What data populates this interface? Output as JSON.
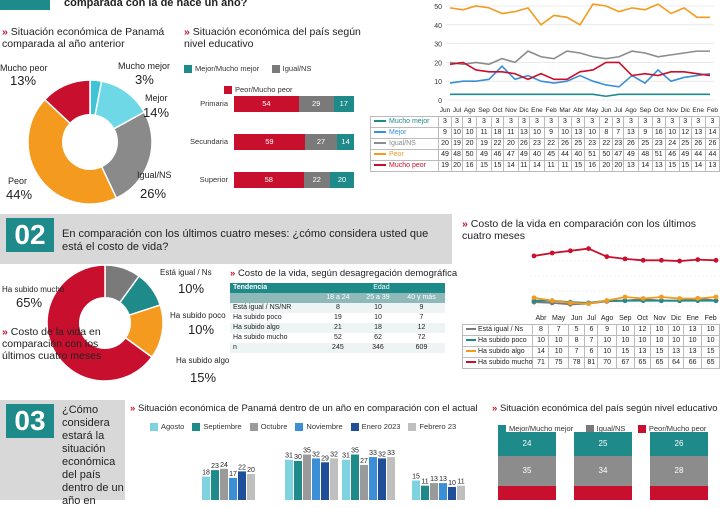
{
  "colors": {
    "teal": "#1f8a8a",
    "blue": "#3b8fd6",
    "green_gray": "#8c8c8c",
    "orange": "#f39a1f",
    "red": "#c8102e",
    "cyan": "#5fd0e0",
    "dark_gray": "#7a7a7a",
    "light_gray": "#bfbfbf"
  },
  "header": {
    "top_question": "comparada con la de hace un año?"
  },
  "sec1": {
    "pie_title": "Situación económica de Panamá comparada al año anterior",
    "pie_labels": {
      "mucho_peor": "Mucho peor",
      "mucho_peor_pct": "13%",
      "mucho_mejor": "Mucho mejor",
      "mucho_mejor_pct": "3%",
      "mejor": "Mejor",
      "mejor_pct": "14%",
      "igual": "Igual/NS",
      "igual_pct": "26%",
      "peor": "Peor",
      "peor_pct": "44%"
    },
    "bar_title": "Situación económica del país según nivel educativo",
    "bar_legend": [
      "Mejor/Mucho mejor",
      "Igual/NS",
      "Peor/Mucho peor"
    ],
    "bar_rows": [
      {
        "label": "Primaria",
        "peor": "54",
        "igual": "29",
        "mejor": "17"
      },
      {
        "label": "Secundaria",
        "peor": "59",
        "igual": "27",
        "mejor": "14"
      },
      {
        "label": "Superior",
        "peor": "58",
        "igual": "22",
        "mejor": "20"
      }
    ]
  },
  "sec2": {
    "badge": "02",
    "question": "En comparación con los últimos cuatro meses: ¿cómo considera usted que está el costo de vida?",
    "pie_labels": {
      "igual": "Está igual / Ns",
      "igual_pct": "10%",
      "mucho": "Ha subido mucho",
      "mucho_pct": "65%",
      "poco": "Ha subido poco",
      "poco_pct": "10%",
      "algo": "Ha subido algo",
      "algo_pct": "15%"
    },
    "pie_caption": "Costo de la vida en comparación con los últimos cuatro meses",
    "demo_title": "Costo de la vida, según desagregación demográfica",
    "demo_head1": [
      "Tendencia",
      "Edad"
    ],
    "demo_head2": [
      "",
      "18 a 24",
      "25 a 39",
      "40 y más"
    ],
    "demo_rows": [
      [
        "Está igual / NS/NR",
        "8",
        "10",
        "9"
      ],
      [
        "Ha subido poco",
        "19",
        "10",
        "7"
      ],
      [
        "Ha subido algo",
        "21",
        "18",
        "12"
      ],
      [
        "Ha subido mucho",
        "52",
        "62",
        "72"
      ],
      [
        "n",
        "245",
        "346",
        "609"
      ]
    ],
    "trend_title": "Costo de la vida en comparación con los últimos cuatro meses",
    "trend_months": [
      "Abr",
      "May",
      "Jun",
      "Jul",
      "Ago",
      "Sep",
      "Oct",
      "Nov",
      "Dic",
      "Ene",
      "Feb"
    ],
    "trend_rows": [
      {
        "label": "Está igual / Ns",
        "values": [
          "8",
          "7",
          "5",
          "6",
          "9",
          "10",
          "12",
          "10",
          "10",
          "13",
          "10"
        ]
      },
      {
        "label": "Ha subido poco",
        "values": [
          "10",
          "10",
          "8",
          "7",
          "10",
          "10",
          "10",
          "10",
          "10",
          "10",
          "10"
        ]
      },
      {
        "label": "Ha subido algo",
        "values": [
          "14",
          "10",
          "7",
          "6",
          "10",
          "15",
          "13",
          "15",
          "13",
          "13",
          "15"
        ]
      },
      {
        "label": "Ha subido mucho",
        "values": [
          "71",
          "75",
          "78",
          "81",
          "70",
          "67",
          "65",
          "65",
          "64",
          "66",
          "65"
        ]
      }
    ]
  },
  "sec3": {
    "badge": "03",
    "question": "¿Cómo considera estará la situación económica del país dentro de un año en",
    "bar_title": "Situación económica de Panamá dentro de un año en comparación con el actual",
    "legend": [
      "Agosto",
      "Septiembre",
      "Octubre",
      "Noviembre",
      "Enero 2023",
      "Febrero 23"
    ],
    "groups": [
      {
        "values": [
          "18",
          "23",
          "24",
          "17",
          "22",
          "20"
        ]
      },
      {
        "values": [
          "31",
          "30",
          "35",
          "32",
          "29",
          "32"
        ]
      },
      {
        "values": [
          "31",
          "35",
          "27",
          "33",
          "32",
          "33"
        ]
      },
      {
        "values": [
          "15",
          "11",
          "13",
          "13",
          "10",
          "11"
        ]
      }
    ],
    "edu_title": "Situación económica del país según nivel educativo",
    "edu_legend": [
      "Mejor/Mucho mejor",
      "Igual/NS",
      "Peor/Mucho peor"
    ],
    "edu_cols": [
      {
        "top": "24",
        "mid": "35"
      },
      {
        "top": "25",
        "mid": "34"
      },
      {
        "top": "26",
        "mid": "28"
      }
    ]
  },
  "chart_data": [
    {
      "type": "pie",
      "title": "Situación económica de Panamá comparada al año anterior",
      "categories": [
        "Mucho mejor",
        "Mejor",
        "Igual/NS",
        "Peor",
        "Mucho peor"
      ],
      "values": [
        3,
        14,
        26,
        44,
        13
      ]
    },
    {
      "type": "bar",
      "title": "Situación económica del país según nivel educativo",
      "categories": [
        "Primaria",
        "Secundaria",
        "Superior"
      ],
      "series": [
        {
          "name": "Peor/Mucho peor",
          "values": [
            54,
            59,
            58
          ]
        },
        {
          "name": "Igual/NS",
          "values": [
            29,
            27,
            22
          ]
        },
        {
          "name": "Mejor/Mucho mejor",
          "values": [
            17,
            14,
            20
          ]
        }
      ]
    },
    {
      "type": "line",
      "x": [
        "Jun",
        "Jul",
        "Ago",
        "Sep",
        "Oct",
        "Nov",
        "Dic",
        "Ene",
        "Feb",
        "Mar",
        "Abr",
        "May",
        "Jun",
        "Jul",
        "Ago",
        "Sep",
        "Oct",
        "Nov",
        "Dic",
        "Ene",
        "Feb"
      ],
      "ylim": [
        0,
        50
      ],
      "yticks": [
        0,
        10,
        20,
        30,
        40,
        50
      ],
      "series": [
        {
          "name": "Mucho mejor",
          "values": [
            3,
            3,
            3,
            3,
            3,
            3,
            3,
            3,
            3,
            3,
            3,
            3,
            2,
            3,
            3,
            3,
            3,
            3,
            3,
            3,
            3
          ]
        },
        {
          "name": "Mejor",
          "values": [
            9,
            10,
            10,
            11,
            18,
            11,
            13,
            10,
            9,
            10,
            13,
            10,
            8,
            7,
            13,
            9,
            16,
            10,
            12,
            13,
            14
          ]
        },
        {
          "name": "Igual/NS",
          "values": [
            20,
            19,
            20,
            19,
            22,
            20,
            26,
            23,
            22,
            26,
            25,
            23,
            22,
            23,
            26,
            25,
            23,
            24,
            25,
            26,
            26
          ]
        },
        {
          "name": "Peor",
          "values": [
            49,
            48,
            50,
            49,
            46,
            47,
            49,
            40,
            45,
            44,
            40,
            51,
            50,
            47,
            49,
            48,
            51,
            46,
            49,
            44,
            44
          ]
        },
        {
          "name": "Mucho peor",
          "values": [
            19,
            20,
            16,
            15,
            15,
            14,
            11,
            14,
            11,
            11,
            15,
            16,
            20,
            20,
            13,
            14,
            13,
            15,
            15,
            14,
            13
          ]
        }
      ]
    },
    {
      "type": "pie",
      "title": "Costo de la vida en comparación con los últimos cuatro meses",
      "categories": [
        "Está igual / Ns",
        "Ha subido poco",
        "Ha subido algo",
        "Ha subido mucho"
      ],
      "values": [
        10,
        10,
        15,
        65
      ]
    },
    {
      "type": "table",
      "title": "Costo de la vida, según desagregación demográfica",
      "columns": [
        "Tendencia",
        "18 a 24",
        "25 a 39",
        "40 y más"
      ]
    },
    {
      "type": "line",
      "title": "Costo de la vida en comparación con los últimos cuatro meses",
      "x": [
        "Abr",
        "May",
        "Jun",
        "Jul",
        "Ago",
        "Sep",
        "Oct",
        "Nov",
        "Dic",
        "Ene",
        "Feb"
      ],
      "series": [
        {
          "name": "Está igual / Ns",
          "values": [
            8,
            7,
            5,
            6,
            9,
            10,
            12,
            10,
            10,
            13,
            10
          ]
        },
        {
          "name": "Ha subido poco",
          "values": [
            10,
            10,
            8,
            7,
            10,
            10,
            10,
            10,
            10,
            10,
            10
          ]
        },
        {
          "name": "Ha subido algo",
          "values": [
            14,
            10,
            7,
            6,
            10,
            15,
            13,
            15,
            13,
            13,
            15
          ]
        },
        {
          "name": "Ha subido mucho",
          "values": [
            71,
            75,
            78,
            81,
            70,
            67,
            65,
            65,
            64,
            66,
            65
          ]
        }
      ]
    },
    {
      "type": "bar",
      "title": "Situación económica de Panamá dentro de un año en comparación con el actual",
      "series": [
        {
          "name": "Agosto",
          "values": [
            18,
            31,
            31,
            15
          ]
        },
        {
          "name": "Septiembre",
          "values": [
            23,
            30,
            35,
            11
          ]
        },
        {
          "name": "Octubre",
          "values": [
            24,
            35,
            27,
            13
          ]
        },
        {
          "name": "Noviembre",
          "values": [
            17,
            32,
            33,
            13
          ]
        },
        {
          "name": "Enero 2023",
          "values": [
            22,
            29,
            32,
            10
          ]
        },
        {
          "name": "Febrero 23",
          "values": [
            20,
            32,
            33,
            11
          ]
        }
      ]
    },
    {
      "type": "bar",
      "title": "Situación económica del país según nivel educativo",
      "series": [
        {
          "name": "Mejor/Mucho mejor",
          "values": [
            24,
            25,
            26
          ]
        },
        {
          "name": "Igual/NS",
          "values": [
            35,
            34,
            28
          ]
        }
      ]
    }
  ]
}
